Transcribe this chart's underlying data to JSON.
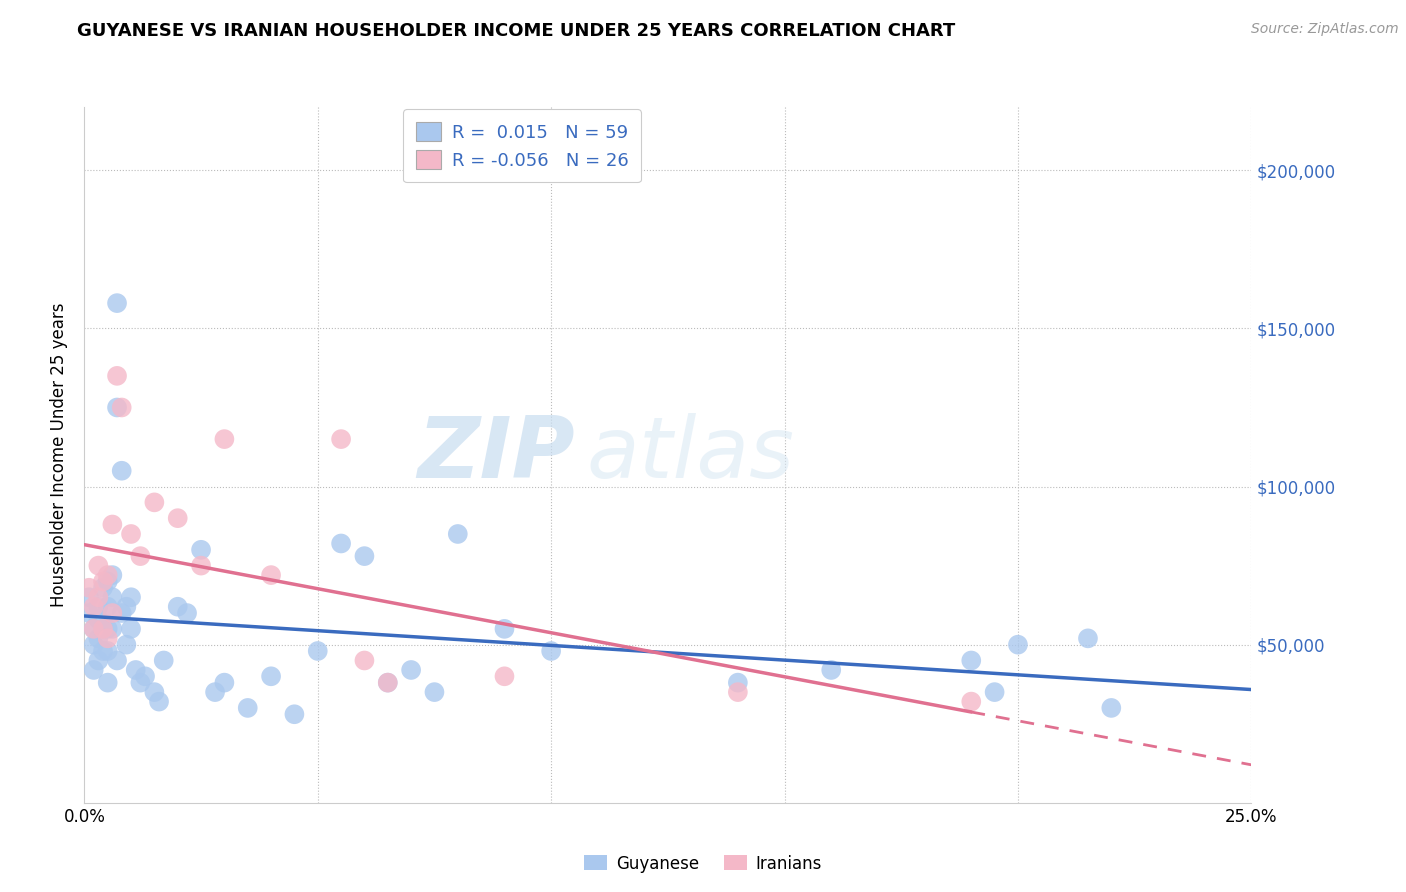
{
  "title": "GUYANESE VS IRANIAN HOUSEHOLDER INCOME UNDER 25 YEARS CORRELATION CHART",
  "source": "Source: ZipAtlas.com",
  "ylabel": "Householder Income Under 25 years",
  "xlim": [
    0.0,
    0.25
  ],
  "ylim": [
    0,
    220000
  ],
  "guyanese_color": "#aac8ee",
  "iranian_color": "#f4b8c8",
  "guyanese_line_color": "#3a6bbf",
  "iranian_line_color": "#e07090",
  "legend_label1": "Guyanese",
  "legend_label2": "Iranians",
  "watermark_zip": "ZIP",
  "watermark_atlas": "atlas",
  "guyanese_x": [
    0.001,
    0.001,
    0.002,
    0.002,
    0.002,
    0.003,
    0.003,
    0.003,
    0.003,
    0.004,
    0.004,
    0.004,
    0.005,
    0.005,
    0.005,
    0.005,
    0.005,
    0.006,
    0.006,
    0.006,
    0.007,
    0.007,
    0.007,
    0.008,
    0.008,
    0.009,
    0.009,
    0.01,
    0.01,
    0.011,
    0.012,
    0.013,
    0.015,
    0.016,
    0.017,
    0.02,
    0.022,
    0.025,
    0.028,
    0.03,
    0.035,
    0.04,
    0.045,
    0.05,
    0.055,
    0.06,
    0.065,
    0.07,
    0.075,
    0.08,
    0.09,
    0.1,
    0.14,
    0.16,
    0.19,
    0.195,
    0.2,
    0.215,
    0.22
  ],
  "guyanese_y": [
    65000,
    60000,
    55000,
    50000,
    42000,
    62000,
    58000,
    52000,
    45000,
    68000,
    55000,
    48000,
    70000,
    62000,
    55000,
    48000,
    38000,
    72000,
    65000,
    55000,
    158000,
    125000,
    45000,
    105000,
    60000,
    62000,
    50000,
    65000,
    55000,
    42000,
    38000,
    40000,
    35000,
    32000,
    45000,
    62000,
    60000,
    80000,
    35000,
    38000,
    30000,
    40000,
    28000,
    48000,
    82000,
    78000,
    38000,
    42000,
    35000,
    85000,
    55000,
    48000,
    38000,
    42000,
    45000,
    35000,
    50000,
    52000,
    30000
  ],
  "iranian_x": [
    0.001,
    0.002,
    0.002,
    0.003,
    0.003,
    0.004,
    0.004,
    0.005,
    0.005,
    0.006,
    0.006,
    0.007,
    0.008,
    0.01,
    0.012,
    0.015,
    0.02,
    0.025,
    0.03,
    0.04,
    0.055,
    0.06,
    0.065,
    0.09,
    0.14,
    0.19
  ],
  "iranian_y": [
    68000,
    62000,
    55000,
    75000,
    65000,
    70000,
    55000,
    72000,
    52000,
    88000,
    60000,
    135000,
    125000,
    85000,
    78000,
    95000,
    90000,
    75000,
    115000,
    72000,
    115000,
    45000,
    38000,
    40000,
    35000,
    32000
  ]
}
